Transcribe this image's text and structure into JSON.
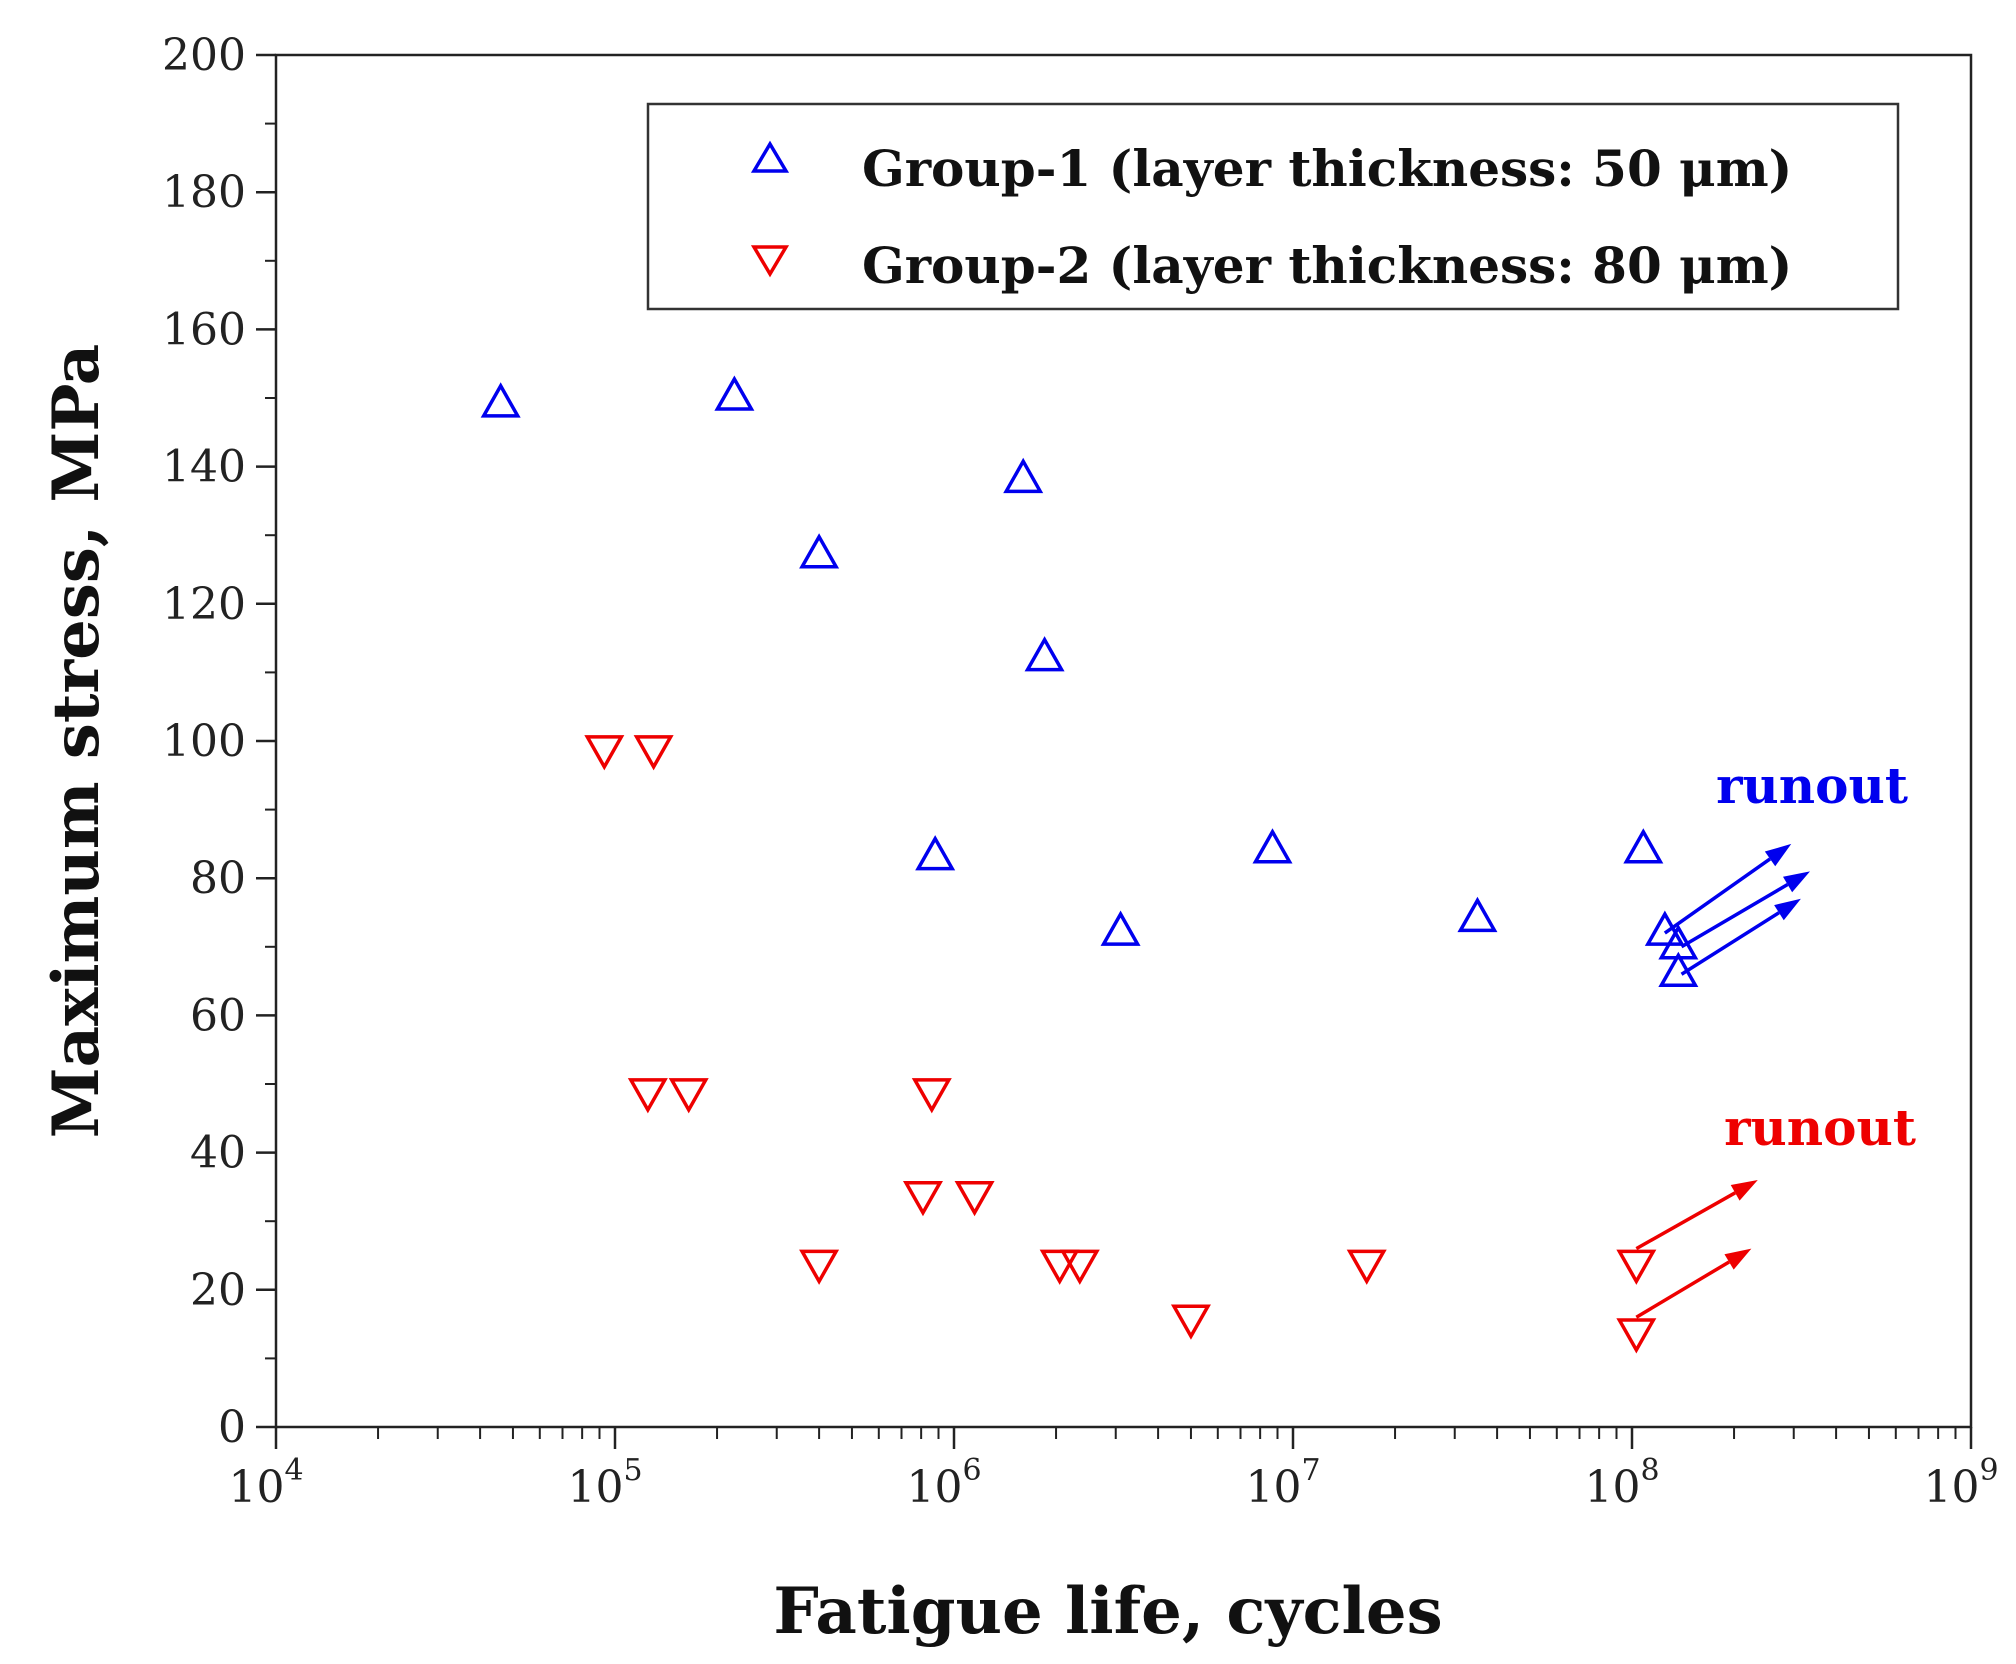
{
  "chart_data": {
    "type": "scatter",
    "title": "",
    "xlabel": "Fatigue life, cycles",
    "ylabel": "Maximum stress, MPa",
    "xscale": "log",
    "xlim": [
      10000,
      1000000000
    ],
    "ylim": [
      0,
      200
    ],
    "x_ticks": [
      {
        "value": 10000,
        "base": "10",
        "exp": "4"
      },
      {
        "value": 100000,
        "base": "10",
        "exp": "5"
      },
      {
        "value": 1000000,
        "base": "10",
        "exp": "6"
      },
      {
        "value": 10000000,
        "base": "10",
        "exp": "7"
      },
      {
        "value": 100000000,
        "base": "10",
        "exp": "8"
      },
      {
        "value": 1000000000,
        "base": "10",
        "exp": "9"
      }
    ],
    "y_ticks": [
      "0",
      "20",
      "40",
      "60",
      "80",
      "100",
      "120",
      "140",
      "160",
      "180",
      "200"
    ],
    "grid": false,
    "legend_position": "top-right",
    "series": [
      {
        "name": "Group-1 (layer thickness: 50 μm)",
        "marker": "triangle-up",
        "color": "#0000ee",
        "points": [
          {
            "x": 46000,
            "y": 149
          },
          {
            "x": 225000,
            "y": 150
          },
          {
            "x": 400000,
            "y": 127
          },
          {
            "x": 880000,
            "y": 83
          },
          {
            "x": 1600000,
            "y": 138
          },
          {
            "x": 1850000,
            "y": 112
          },
          {
            "x": 3100000,
            "y": 72
          },
          {
            "x": 8700000,
            "y": 84
          },
          {
            "x": 35000000,
            "y": 74
          },
          {
            "x": 108000000,
            "y": 84
          },
          {
            "x": 125000000,
            "y": 72
          },
          {
            "x": 137000000,
            "y": 70
          },
          {
            "x": 137000000,
            "y": 66
          }
        ]
      },
      {
        "name": "Group-2 (layer thickness: 80 μm)",
        "marker": "triangle-down",
        "color": "#ee0000",
        "points": [
          {
            "x": 93000,
            "y": 99
          },
          {
            "x": 130000,
            "y": 99
          },
          {
            "x": 125000,
            "y": 49
          },
          {
            "x": 165000,
            "y": 49
          },
          {
            "x": 400000,
            "y": 24
          },
          {
            "x": 810000,
            "y": 34
          },
          {
            "x": 860000,
            "y": 49
          },
          {
            "x": 1150000,
            "y": 34
          },
          {
            "x": 2050000,
            "y": 24
          },
          {
            "x": 2350000,
            "y": 24
          },
          {
            "x": 5000000,
            "y": 16
          },
          {
            "x": 16500000,
            "y": 24
          },
          {
            "x": 103000000,
            "y": 24
          },
          {
            "x": 103000000,
            "y": 14
          }
        ]
      }
    ],
    "annotations": [
      {
        "text": "runout",
        "color": "#0000ee",
        "arrows": [
          {
            "from": {
              "x": 125000000,
              "y": 72
            },
            "to": {
              "x": 295000000,
              "y": 85
            }
          },
          {
            "from": {
              "x": 140000000,
              "y": 70
            },
            "to": {
              "x": 335000000,
              "y": 81
            }
          },
          {
            "from": {
              "x": 140000000,
              "y": 66
            },
            "to": {
              "x": 315000000,
              "y": 77
            }
          }
        ]
      },
      {
        "text": "runout",
        "color": "#ee0000",
        "arrows": [
          {
            "from": {
              "x": 103000000,
              "y": 26
            },
            "to": {
              "x": 235000000,
              "y": 36
            }
          },
          {
            "from": {
              "x": 103000000,
              "y": 16
            },
            "to": {
              "x": 225000000,
              "y": 26
            }
          }
        ]
      }
    ]
  }
}
